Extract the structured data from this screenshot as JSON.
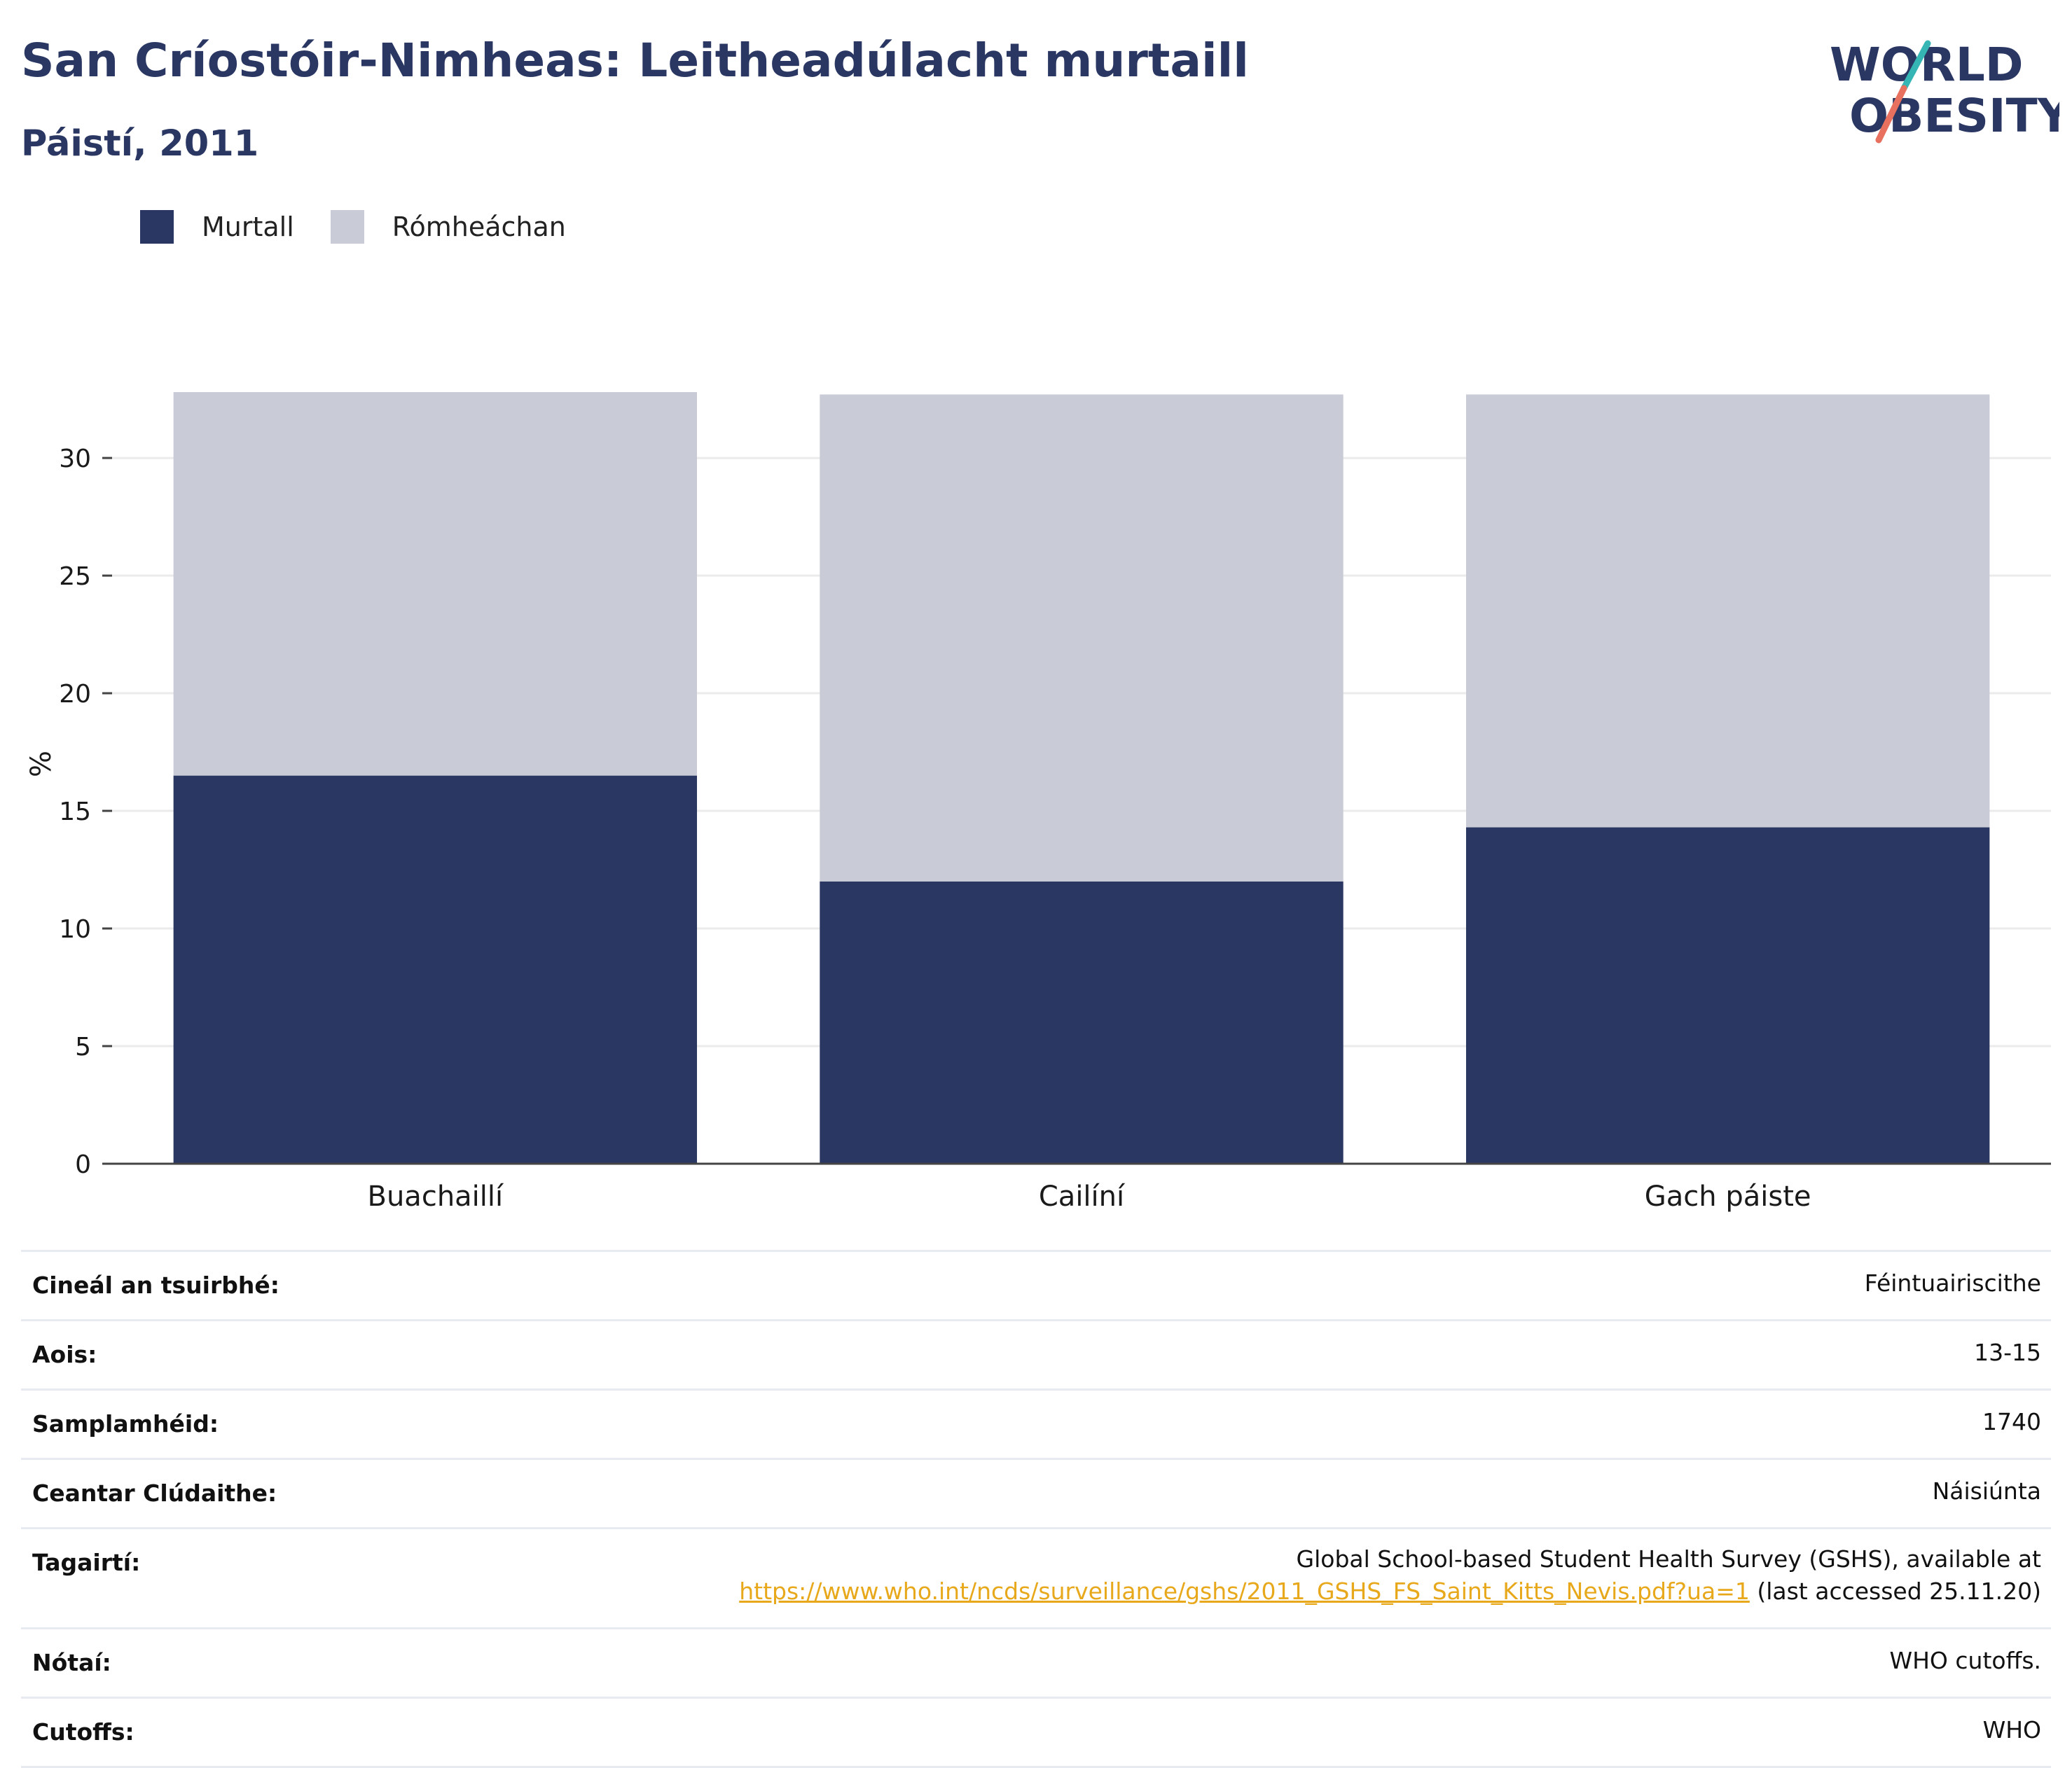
{
  "header": {
    "title": "San Críostóir-Nimheas: Leitheadúlacht murtaill",
    "subtitle": "Páistí, 2011"
  },
  "logo": {
    "line1": "WORLD",
    "line2": "OBESITY",
    "accent_teal": "#35b6b4",
    "accent_coral": "#e8705e"
  },
  "chart_data": {
    "type": "bar",
    "stacked": true,
    "categories": [
      "Buachaillí",
      "Cailíní",
      "Gach páiste"
    ],
    "series": [
      {
        "name": "Murtall",
        "color": "#2a3763",
        "values": [
          16.5,
          12.0,
          14.3
        ]
      },
      {
        "name": "Rómheáchan",
        "color": "#c9cbd6",
        "values": [
          16.3,
          20.7,
          18.4
        ]
      }
    ],
    "ylabel": "%",
    "ylim": [
      0,
      32.8
    ],
    "yticks": [
      0,
      5,
      10,
      15,
      20,
      25,
      30
    ],
    "grid": true,
    "legend_position": "top-left"
  },
  "meta": {
    "rows": [
      {
        "key": "Cineál an tsuirbhé:",
        "value": "Féintuairiscithe"
      },
      {
        "key": "Aois:",
        "value": "13-15"
      },
      {
        "key": "Samplamhéid:",
        "value": "1740"
      },
      {
        "key": "Ceantar Clúdaithe:",
        "value": "Náisiúnta"
      }
    ],
    "reference": {
      "key": "Tagairtí:",
      "line1": "Global School-based Student Health Survey (GSHS), available at",
      "link": "https://www.who.int/ncds/surveillance/gshs/2011_GSHS_FS_Saint_Kitts_Nevis.pdf?ua=1",
      "suffix": " (last accessed 25.11.20)"
    },
    "rows2": [
      {
        "key": "Nótaí:",
        "value": "WHO cutoffs."
      },
      {
        "key": "Cutoffs:",
        "value": "WHO"
      }
    ]
  }
}
